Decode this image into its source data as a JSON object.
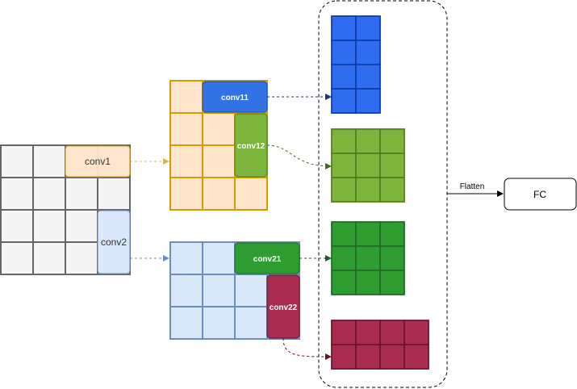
{
  "labels": {
    "conv1": "conv1",
    "conv2": "conv2",
    "conv11": "conv11",
    "conv12": "conv12",
    "conv21": "conv21",
    "conv22": "conv22",
    "flatten": "Flatten",
    "fc": "FC"
  },
  "colors": {
    "input_fill": "#f5f5f5",
    "input_stroke": "#666666",
    "orange_fill": "#ffe6cc",
    "orange_stroke": "#d79b00",
    "blue_light_fill": "#dae8fc",
    "blue_light_stroke": "#6c8ebf",
    "conv11_fill": "#3272e3",
    "conv11_stroke": "#1d4fb0",
    "conv12_fill": "#7db43c",
    "conv12_stroke": "#4d7a19",
    "conv21_fill": "#2f9c32",
    "conv21_stroke": "#1b6b1e",
    "conv22_fill": "#a72c4f",
    "conv22_stroke": "#6b1027",
    "out_blue_fill": "#2f6cf0",
    "out_blue_stroke": "#0b36a8",
    "out_lgreen_fill": "#7db43c",
    "out_lgreen_stroke": "#4d7a19",
    "out_green_fill": "#2f9c32",
    "out_green_stroke": "#1b6b1e",
    "out_red_fill": "#a72c4f",
    "out_red_stroke": "#6b1027"
  }
}
